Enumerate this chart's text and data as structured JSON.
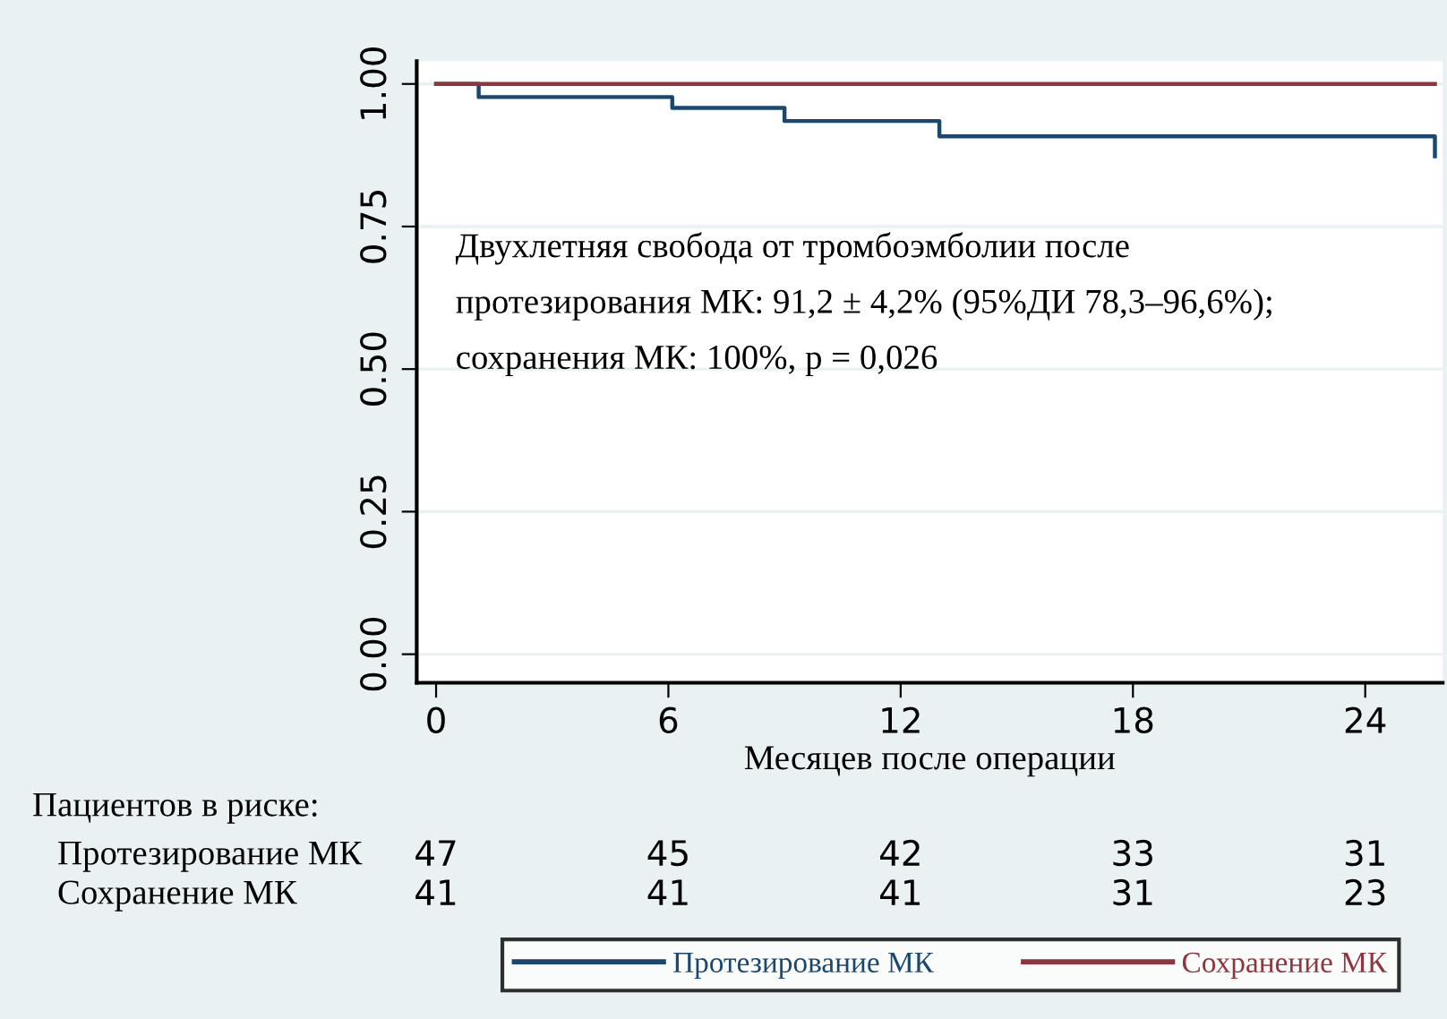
{
  "chart_data": {
    "type": "step",
    "xlabel": "Месяцев после операции",
    "series": [
      {
        "name": "Протезирование МК",
        "color": "#1a476f",
        "x": [
          0,
          1.1,
          6.1,
          9,
          13,
          25.8
        ],
        "values": [
          1,
          0.977,
          0.958,
          0.935,
          0.908,
          0.873
        ]
      },
      {
        "name": "Сохранение МК",
        "color": "#90353b",
        "x": [
          0,
          25.8
        ],
        "values": [
          1,
          1
        ]
      }
    ],
    "xlim": [
      -0.5,
      26
    ],
    "xticks": [
      0,
      6,
      12,
      18,
      24
    ],
    "ylim": [
      -0.05,
      1.04
    ],
    "yticks": [
      {
        "value": 0,
        "label": "0.00"
      },
      {
        "value": 0.25,
        "label": "0.25"
      },
      {
        "value": 0.5,
        "label": "0.50"
      },
      {
        "value": 0.75,
        "label": "0.75"
      },
      {
        "value": 1,
        "label": "1.00"
      }
    ],
    "grid": "y",
    "legend": "bottom",
    "line_style": "solid",
    "marker": "none",
    "annotations": [
      "Двухлетняя свобода от тромбоэмболии после\nпротезирования МК: 91,2 ± 4,2% (95%ДИ 78,3–96,6%);\nсохранения МК: 100%, p = 0,026",
      "Пациентов в риске:",
      "Протезирование МК",
      "Сохранение МК",
      "47",
      "45",
      "42",
      "33",
      "31",
      "41",
      "41",
      "41",
      "31",
      "23"
    ]
  }
}
